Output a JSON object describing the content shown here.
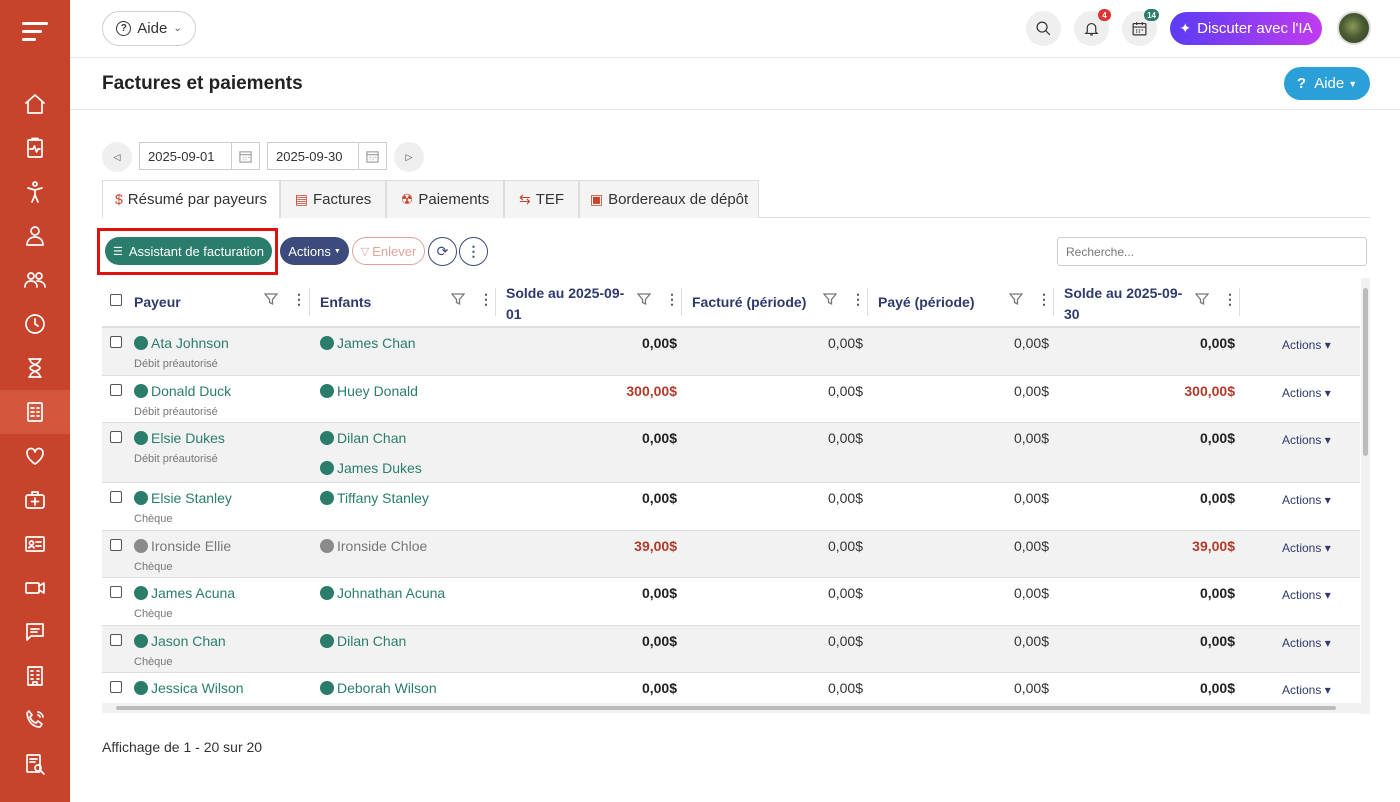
{
  "topbar": {
    "help_label": "Aide",
    "notif_badge": "4",
    "calendar_badge": "14",
    "ai_button_label": "Discuter avec l'IA"
  },
  "page": {
    "title": "Factures et paiements",
    "help_button": "Aide"
  },
  "date_range": {
    "start": "2025-09-01",
    "end": "2025-09-30"
  },
  "tabs": [
    {
      "label": "Résumé par payeurs",
      "icon": "dollar-icon"
    },
    {
      "label": "Factures",
      "icon": "invoice-icon"
    },
    {
      "label": "Paiements",
      "icon": "hand-money-icon"
    },
    {
      "label": "TEF",
      "icon": "transfer-icon"
    },
    {
      "label": "Bordereaux de dépôt",
      "icon": "deposit-icon"
    }
  ],
  "toolbar": {
    "assistant_label": "Assistant de facturation",
    "actions_label": "Actions",
    "remove_label": "Enlever",
    "search_placeholder": "Recherche..."
  },
  "table": {
    "columns": [
      "Payeur",
      "Enfants",
      "Solde au 2025-09-01",
      "Facturé (période)",
      "Payé (période)",
      "Solde au 2025-09-30"
    ],
    "row_action_label": "Actions",
    "rows": [
      {
        "payer": "Ata Johnson",
        "method": "Débit préautorisé",
        "children": [
          "James Chan"
        ],
        "opening": "0,00$",
        "billed": "0,00$",
        "paid": "0,00$",
        "closing": "0,00$",
        "inactive": false
      },
      {
        "payer": "Donald Duck",
        "method": "Débit préautorisé",
        "children": [
          "Huey Donald"
        ],
        "opening": "300,00$",
        "billed": "0,00$",
        "paid": "0,00$",
        "closing": "300,00$",
        "inactive": false
      },
      {
        "payer": "Elsie Dukes",
        "method": "Débit préautorisé",
        "children": [
          "Dilan Chan",
          "James Dukes"
        ],
        "opening": "0,00$",
        "billed": "0,00$",
        "paid": "0,00$",
        "closing": "0,00$",
        "inactive": false
      },
      {
        "payer": "Elsie Stanley",
        "method": "Chèque",
        "children": [
          "Tiffany Stanley"
        ],
        "opening": "0,00$",
        "billed": "0,00$",
        "paid": "0,00$",
        "closing": "0,00$",
        "inactive": false
      },
      {
        "payer": "Ironside Ellie",
        "method": "Chèque",
        "children": [
          "Ironside Chloe"
        ],
        "opening": "39,00$",
        "billed": "0,00$",
        "paid": "0,00$",
        "closing": "39,00$",
        "inactive": true
      },
      {
        "payer": "James Acuna",
        "method": "Chèque",
        "children": [
          "Johnathan Acuna"
        ],
        "opening": "0,00$",
        "billed": "0,00$",
        "paid": "0,00$",
        "closing": "0,00$",
        "inactive": false
      },
      {
        "payer": "Jason Chan",
        "method": "Chèque",
        "children": [
          "Dilan Chan"
        ],
        "opening": "0,00$",
        "billed": "0,00$",
        "paid": "0,00$",
        "closing": "0,00$",
        "inactive": false
      },
      {
        "payer": "Jessica Wilson",
        "method": "",
        "children": [
          "Deborah Wilson"
        ],
        "opening": "0,00$",
        "billed": "0,00$",
        "paid": "0,00$",
        "closing": "0,00$",
        "inactive": false
      }
    ]
  },
  "footer": {
    "paging_text": "Affichage de 1 - 20 sur 20"
  },
  "colors": {
    "sidebar": "#c8432b",
    "accent_green": "#2a7d6b",
    "navy": "#3c4a7c",
    "negative_red": "#b23a2a",
    "help_blue": "#2a9fd8"
  }
}
